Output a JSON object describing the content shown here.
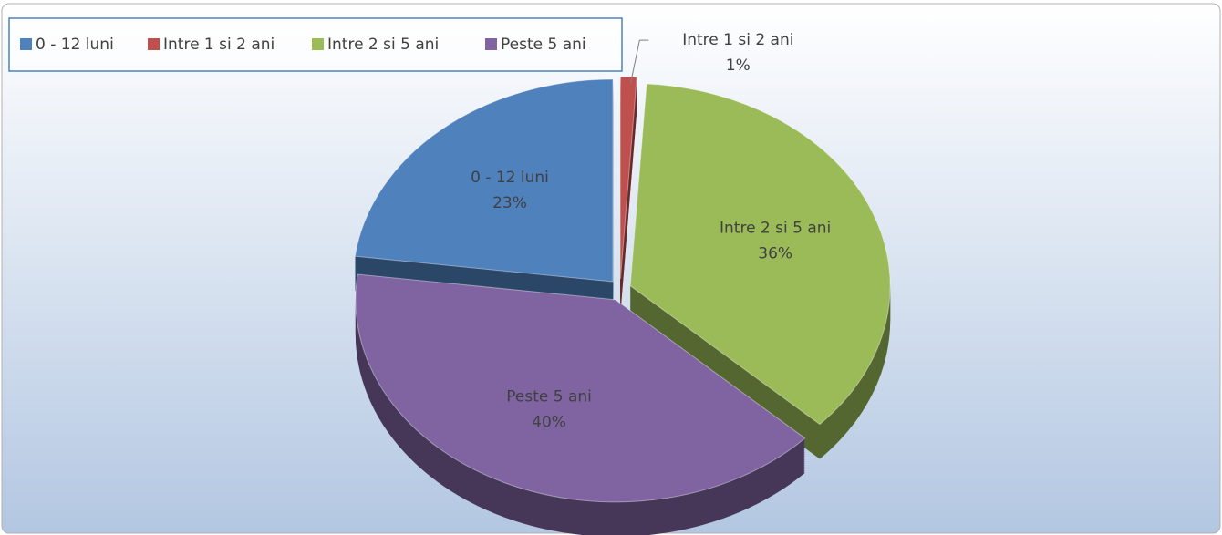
{
  "chart_data": {
    "type": "pie",
    "categories": [
      "0 - 12 luni",
      "Intre 1 si 2 ani",
      "Intre 2 si 5 ani",
      "Peste 5 ani"
    ],
    "values": [
      23,
      1,
      36,
      40
    ],
    "value_labels": [
      "23%",
      "1%",
      "36%",
      "40%"
    ],
    "colors": [
      "#4f81bd",
      "#c0504d",
      "#9bbb59",
      "#8064a2"
    ],
    "legend": "top-left"
  }
}
